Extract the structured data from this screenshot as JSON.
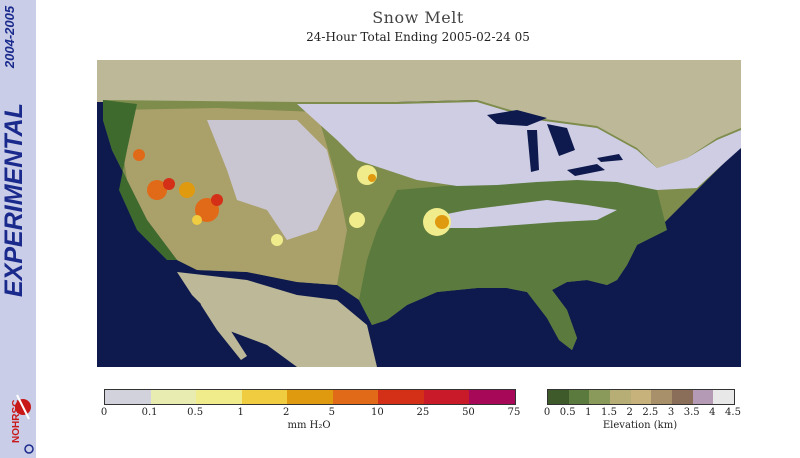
{
  "sidebar": {
    "years": "2004-2005",
    "experimental": "EXPERIMENTAL",
    "logo_text": "NOHRSC"
  },
  "header": {
    "title": "Snow Melt",
    "subtitle": "24-Hour Total Ending 2005-02-24 05"
  },
  "map": {
    "colors": {
      "ocean": "#0e1a4e",
      "land_foreign": "#bcb898",
      "lowland": "#5a7a3e",
      "plains": "#7e8c4c",
      "high": "#aaa06a",
      "snow": "#cfcde3"
    }
  },
  "melt_legend": {
    "unit": "mm H₂O",
    "ticks": [
      "0",
      "0.1",
      "0.5",
      "1",
      "2",
      "5",
      "10",
      "25",
      "50",
      "75"
    ],
    "colors": [
      "#d2d2dc",
      "#e8ecb0",
      "#f0ec8c",
      "#f0cc40",
      "#e09a10",
      "#e06a18",
      "#d43018",
      "#c81a28",
      "#a80858"
    ]
  },
  "elev_legend": {
    "unit": "Elevation (km)",
    "ticks": [
      "0",
      "0.5",
      "1",
      "1.5",
      "2",
      "2.5",
      "3",
      "3.5",
      "4",
      "4.5"
    ],
    "colors": [
      "#3e5a2a",
      "#5a7a3e",
      "#8a9a5a",
      "#b6ae74",
      "#c8b27c",
      "#a8906a",
      "#8a6e5a",
      "#b49ab4",
      "#e8e8e8"
    ]
  }
}
